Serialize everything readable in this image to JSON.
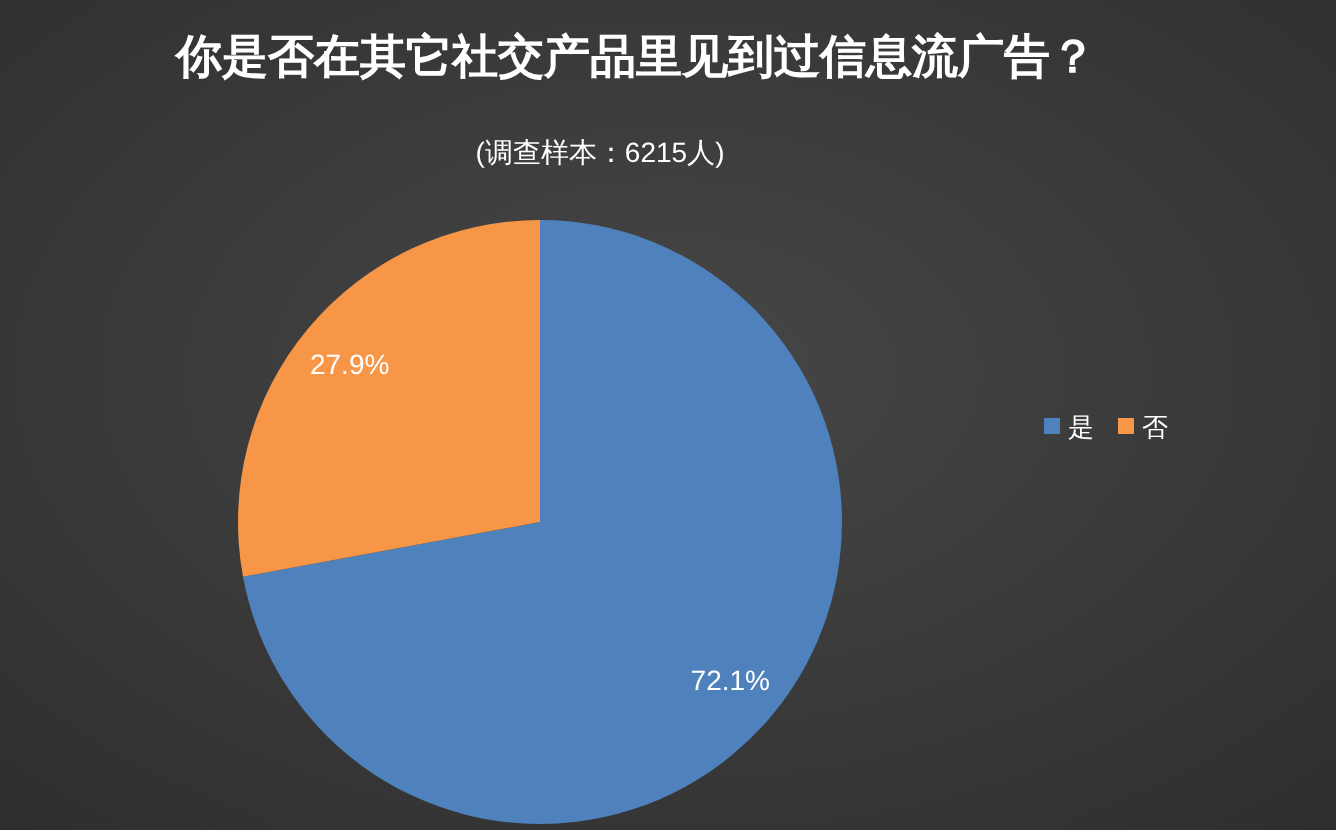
{
  "chart_data": {
    "type": "pie",
    "title": "你是否在其它社交产品里见到过信息流广告？",
    "subtitle": "(调查样本：6215人)",
    "categories": [
      "是",
      "否"
    ],
    "values": [
      72.1,
      27.9
    ],
    "colors": [
      "#4f81bd",
      "#f79646"
    ],
    "value_labels": [
      "72.1%",
      "27.9%"
    ],
    "legend": "right"
  }
}
